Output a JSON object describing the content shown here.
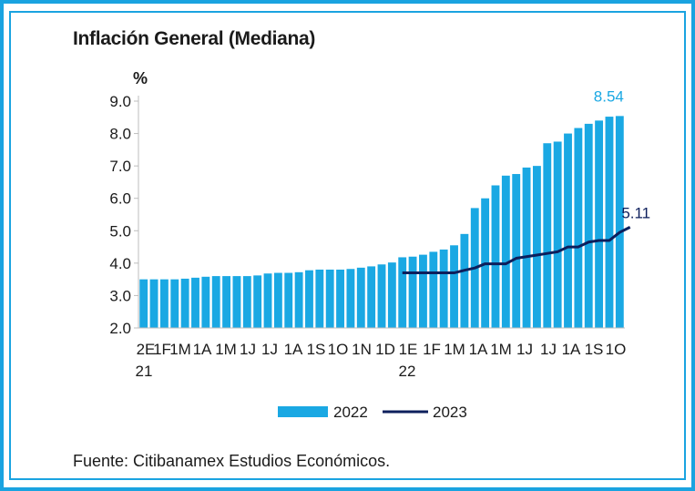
{
  "header": {
    "title": "Inflación General (Mediana)"
  },
  "footer": {
    "source": "Fuente: Citibanamex Estudios Económicos."
  },
  "colors": {
    "frame": "#1aa3e0",
    "bar": "#1aa8e3",
    "line": "#0d1f5c",
    "text": "#1b1b1b",
    "label_2022": "#1aa8e3",
    "label_2023": "#0d1f5c"
  },
  "chart_data": {
    "type": "bar",
    "title": "Inflación General (Mediana)",
    "ylabel": "%",
    "ylim": [
      2.0,
      9.0
    ],
    "yticks": [
      "9.0",
      "8.0",
      "7.0",
      "6.0",
      "5.0",
      "4.0",
      "3.0",
      "2.0"
    ],
    "x_tick_labels": [
      "2E",
      "1F",
      "1M",
      "1A",
      "1M",
      "1J",
      "1J",
      "1A",
      "1S",
      "1O",
      "1N",
      "1D",
      "1E",
      "1F",
      "1M",
      "1A",
      "1M",
      "1J",
      "1J",
      "1A",
      "1S",
      "1O"
    ],
    "x_year_labels": [
      "21",
      "22"
    ],
    "legend": [
      "2022",
      "2023"
    ],
    "legend_position": "bottom",
    "series": [
      {
        "name": "2022",
        "kind": "bar",
        "values": [
          3.5,
          3.5,
          3.5,
          3.5,
          3.52,
          3.55,
          3.58,
          3.6,
          3.6,
          3.6,
          3.6,
          3.62,
          3.68,
          3.7,
          3.7,
          3.72,
          3.78,
          3.8,
          3.8,
          3.8,
          3.82,
          3.86,
          3.9,
          3.96,
          4.02,
          4.18,
          4.2,
          4.26,
          4.35,
          4.42,
          4.55,
          4.9,
          5.7,
          6.0,
          6.4,
          6.7,
          6.75,
          6.95,
          7.0,
          7.7,
          7.75,
          8.0,
          8.17,
          8.3,
          8.4,
          8.52,
          8.54
        ],
        "end_label": "8.54"
      },
      {
        "name": "2023",
        "kind": "line",
        "start_index": 25,
        "values": [
          3.7,
          3.7,
          3.7,
          3.7,
          3.7,
          3.7,
          3.78,
          3.85,
          3.98,
          3.98,
          3.98,
          4.15,
          4.2,
          4.25,
          4.3,
          4.35,
          4.5,
          4.5,
          4.65,
          4.7,
          4.7,
          4.95,
          5.11
        ],
        "end_label": "5.11"
      }
    ]
  }
}
